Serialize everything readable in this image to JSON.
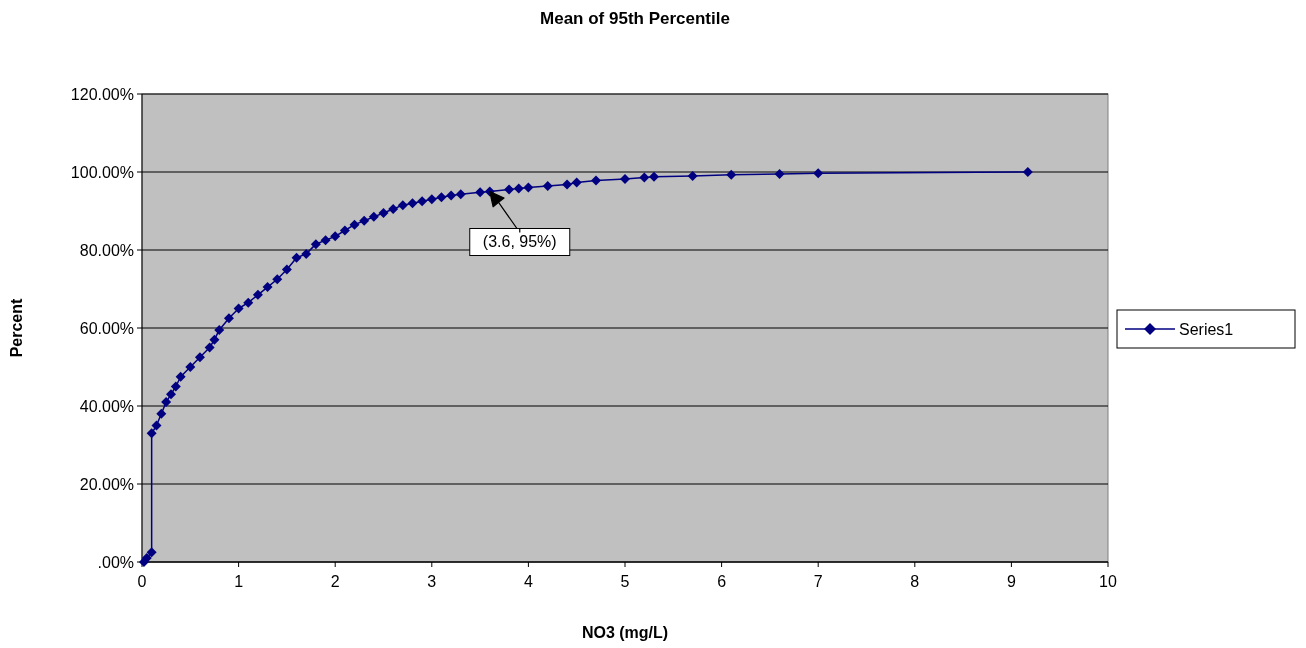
{
  "chart_data": {
    "type": "line",
    "title": "Mean of 95th Percentile",
    "xlabel": "NO3 (mg/L)",
    "ylabel": "Percent",
    "xlim": [
      0,
      10
    ],
    "xticks": [
      0,
      1,
      2,
      3,
      4,
      5,
      6,
      7,
      8,
      9,
      10
    ],
    "ylim": [
      0,
      120
    ],
    "yticks": [
      {
        "value": 0,
        "label": ".00%"
      },
      {
        "value": 20,
        "label": "20.00%"
      },
      {
        "value": 40,
        "label": "40.00%"
      },
      {
        "value": 60,
        "label": "60.00%"
      },
      {
        "value": 80,
        "label": "80.00%"
      },
      {
        "value": 100,
        "label": "100.00%"
      },
      {
        "value": 120,
        "label": "120.00%"
      }
    ],
    "grid": "y",
    "legend": "right",
    "marker": "diamond",
    "line_style": "solid",
    "annotations": [
      {
        "text": "(3.6, 95%)",
        "x": 3.6,
        "y": 95
      }
    ],
    "series": [
      {
        "name": "Series1",
        "color": "#000080",
        "x": [
          0.02,
          0.05,
          0.1,
          0.1,
          0.15,
          0.2,
          0.25,
          0.3,
          0.35,
          0.4,
          0.5,
          0.6,
          0.7,
          0.75,
          0.8,
          0.9,
          1.0,
          1.1,
          1.2,
          1.3,
          1.4,
          1.5,
          1.6,
          1.7,
          1.8,
          1.9,
          2.0,
          2.1,
          2.2,
          2.3,
          2.4,
          2.5,
          2.6,
          2.7,
          2.8,
          2.9,
          3.0,
          3.1,
          3.2,
          3.3,
          3.5,
          3.6,
          3.8,
          3.9,
          4.0,
          4.2,
          4.4,
          4.5,
          4.7,
          5.0,
          5.2,
          5.3,
          5.7,
          6.1,
          6.6,
          7.0,
          9.17
        ],
        "values": [
          0,
          1,
          2.5,
          33,
          35,
          38,
          41,
          43,
          45,
          47.5,
          50,
          52.5,
          55,
          57,
          59.5,
          62.5,
          65,
          66.5,
          68.5,
          70.5,
          72.5,
          75,
          78,
          79,
          81.5,
          82.5,
          83.5,
          85,
          86.5,
          87.5,
          88.5,
          89.5,
          90.5,
          91.5,
          92,
          92.5,
          93,
          93.5,
          94,
          94.3,
          94.8,
          95,
          95.5,
          95.8,
          96,
          96.4,
          96.8,
          97.3,
          97.8,
          98.2,
          98.6,
          98.8,
          99,
          99.3,
          99.5,
          99.7,
          100
        ]
      }
    ]
  }
}
